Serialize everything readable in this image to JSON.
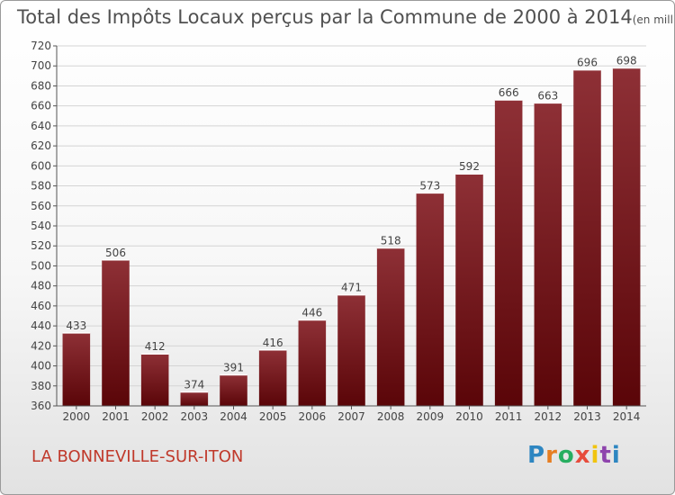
{
  "chart_data": {
    "type": "bar",
    "title": "Total des Impôts Locaux perçus par la Commune de 2000 à 2014",
    "unit_label": "(en milliers d'€)",
    "categories": [
      "2000",
      "2001",
      "2002",
      "2003",
      "2004",
      "2005",
      "2006",
      "2007",
      "2008",
      "2009",
      "2010",
      "2011",
      "2012",
      "2013",
      "2014"
    ],
    "values": [
      433,
      506,
      412,
      374,
      391,
      416,
      446,
      471,
      518,
      573,
      592,
      666,
      663,
      696,
      698
    ],
    "ylim": [
      360,
      720
    ],
    "ytick_step": 20,
    "xlabel": "",
    "ylabel": "",
    "grid": true,
    "bar_color": "#7a1f26"
  },
  "commune": "LA BONNEVILLE-SUR-ITON",
  "logo": {
    "letters": [
      "P",
      "r",
      "o",
      "x",
      "i",
      "t",
      "i"
    ],
    "colors": [
      "#2e86c1",
      "#e67e22",
      "#27ae60",
      "#e74c3c",
      "#f1c40f",
      "#8e44ad",
      "#2e86c1"
    ]
  }
}
